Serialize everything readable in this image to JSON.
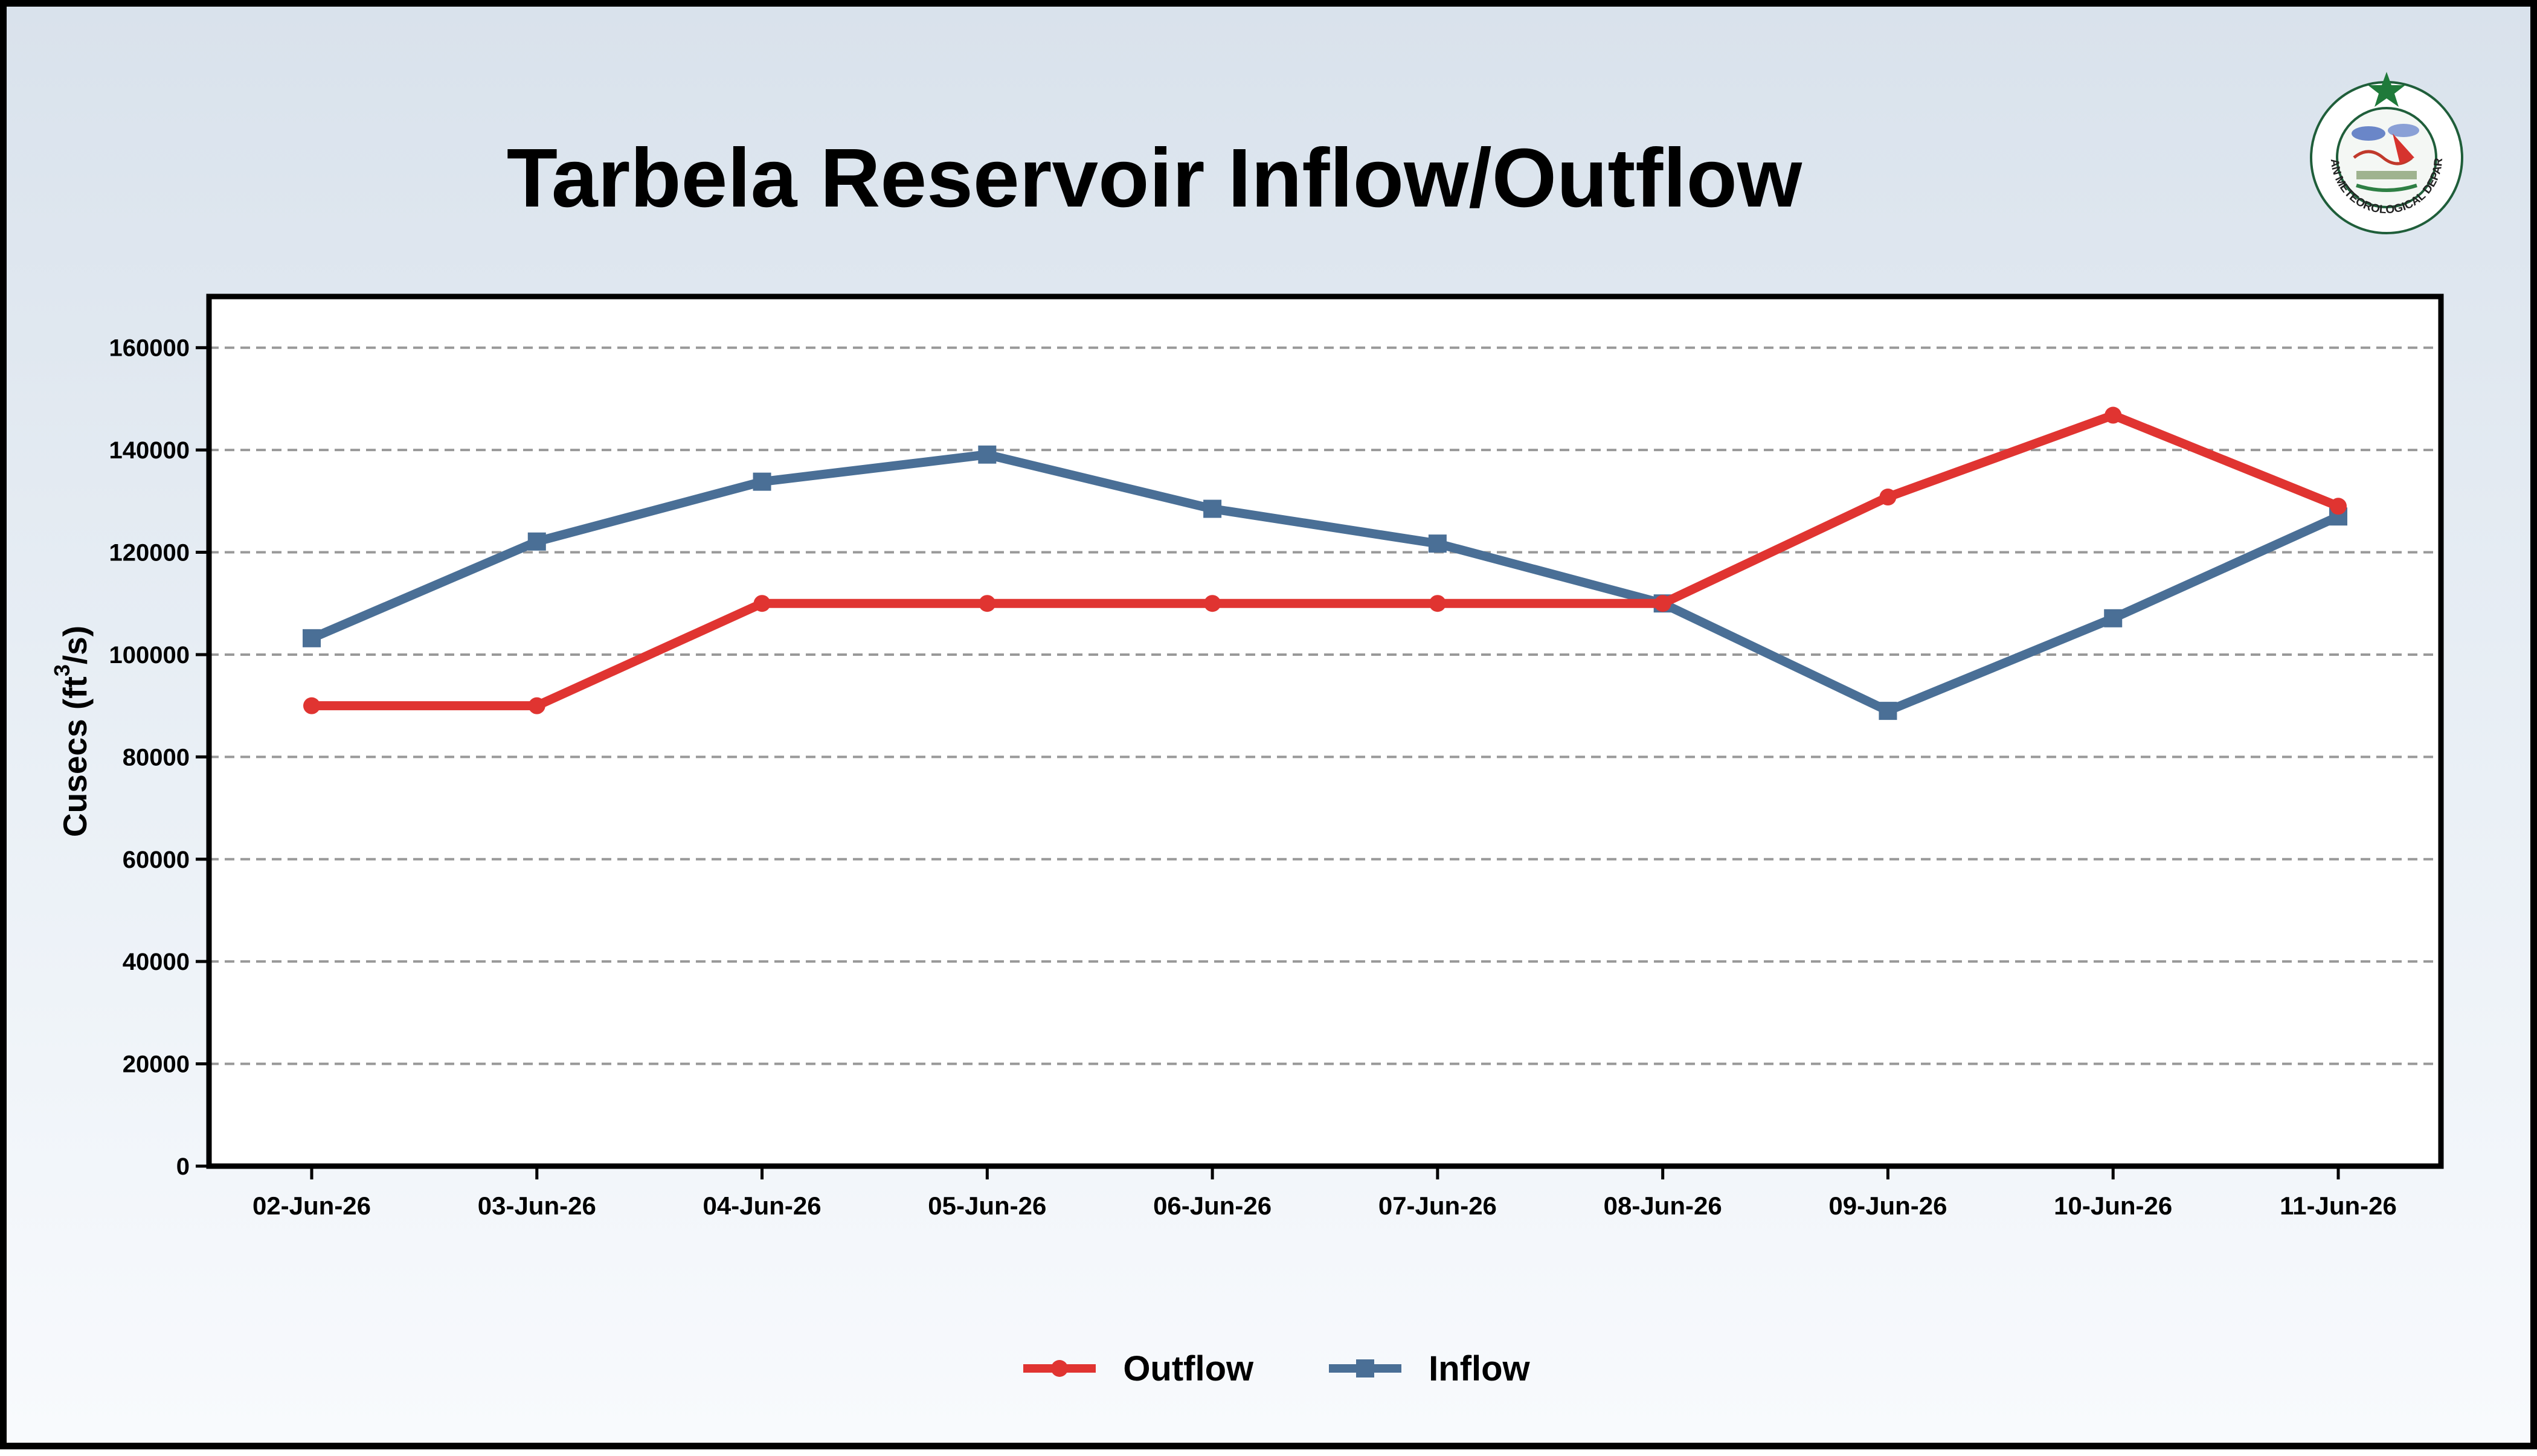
{
  "chart_data": {
    "type": "line",
    "title": "Tarbela Reservoir Inflow/Outflow",
    "ylabel": "Cusecs (ft³/s)",
    "ylabel_main": "Cusecs (ft",
    "ylabel_sup": "3",
    "ylabel_end": "/s)",
    "xlabel": "",
    "categories": [
      "02-Jun-26",
      "03-Jun-26",
      "04-Jun-26",
      "05-Jun-26",
      "06-Jun-26",
      "07-Jun-26",
      "08-Jun-26",
      "09-Jun-26",
      "10-Jun-26",
      "11-Jun-26"
    ],
    "ylim": [
      0,
      170000
    ],
    "yticks": [
      0,
      20000,
      40000,
      60000,
      80000,
      100000,
      120000,
      140000,
      160000
    ],
    "grid": true,
    "legend_position": "bottom-center",
    "series": [
      {
        "name": "Outflow",
        "color": "#e03431",
        "marker": "circle",
        "values": [
          90000,
          90000,
          110000,
          110000,
          110000,
          110000,
          110000,
          130800,
          146800,
          129000
        ]
      },
      {
        "name": "Inflow",
        "color": "#4a6f96",
        "marker": "square",
        "values": [
          103200,
          122100,
          133800,
          139100,
          128500,
          121700,
          110000,
          89000,
          107100,
          127000
        ]
      }
    ]
  },
  "logo": {
    "icon": "pakistan-meteorological-department-seal",
    "text": "PAKISTAN METEOROLOGICAL DEPARTMENT",
    "star_color": "#1f7a3a"
  }
}
